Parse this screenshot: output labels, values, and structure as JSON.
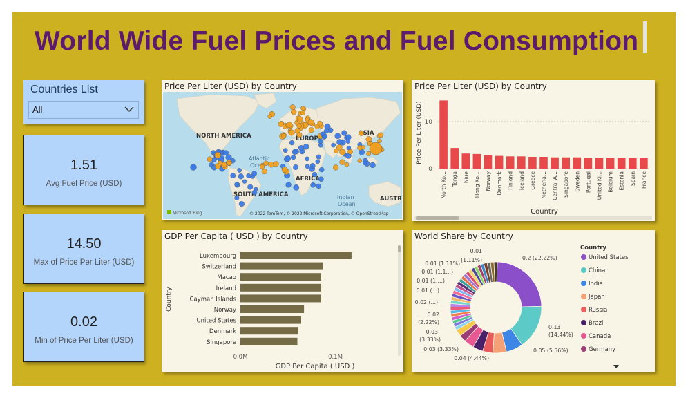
{
  "header": {
    "title": "World Wide Fuel Prices and Fuel Consumption"
  },
  "slicer": {
    "label": "Countries List",
    "selected": "All"
  },
  "cards": [
    {
      "value": "1.51",
      "label": "Avg Fuel Price (USD)"
    },
    {
      "value": "14.50",
      "label": "Max of Price Per Liter (USD)"
    },
    {
      "value": "0.02",
      "label": "Min of Price Per Liter (USD)"
    }
  ],
  "map": {
    "title": "Price Per Liter (USD) by Country",
    "labels": [
      "NORTH AMERICA",
      "EUROPE",
      "ASIA",
      "Atlantic",
      "Ocean",
      "AFRICA",
      "SOUTH AMERICA",
      "Indian",
      "Ocean",
      "AUSTRA"
    ],
    "logo": "Microsoft Bing",
    "attribution": "© 2022 TomTom, © 2022 Microsoft Corporation, © OpenStreetMap",
    "colors": {
      "water": "#b7dcec",
      "land": "#eee9d8",
      "blue_dot": "#3b7be8",
      "orange_dot": "#f0a020"
    }
  },
  "chart_data": [
    {
      "type": "bar",
      "title": "Price Per Liter (USD) by Country",
      "xlabel": "Country",
      "ylabel": "Price Per Liter (USD)",
      "categories": [
        "North Ko...",
        "Tonga",
        "Niue",
        "Hong Ko...",
        "Norway",
        "Denmark",
        "Finland",
        "Iceland",
        "Greece",
        "Netherla...",
        "Central A...",
        "Singapore",
        "Sweden",
        "Portugal",
        "United Ki...",
        "Belgium",
        "Estonia",
        "Spain",
        "France"
      ],
      "values": [
        14.5,
        4.4,
        3.2,
        3.1,
        2.8,
        2.7,
        2.6,
        2.6,
        2.5,
        2.5,
        2.4,
        2.4,
        2.4,
        2.3,
        2.3,
        2.3,
        2.2,
        2.2,
        2.2
      ],
      "ylim": [
        0,
        15
      ],
      "yticks": [
        "0",
        "10"
      ],
      "grid": true,
      "color": "#e8494b"
    },
    {
      "type": "bar",
      "orientation": "horizontal",
      "title": "GDP Per Capita ( USD ) by Country",
      "xlabel": "GDP Per Capita ( USD )",
      "ylabel": "Country",
      "categories": [
        "Luxembourg",
        "Switzerland",
        "Macao",
        "Ireland",
        "Cayman Islands",
        "Norway",
        "United States",
        "Denmark",
        "Singapore"
      ],
      "values": [
        117000,
        87000,
        85000,
        85000,
        85000,
        67000,
        64000,
        61000,
        60000
      ],
      "xlim": [
        0,
        160000
      ],
      "xticks": [
        "0.0M",
        "0.1M"
      ],
      "color": "#766b47"
    },
    {
      "type": "pie",
      "subtype": "donut",
      "title": "World Share by Country",
      "legend_title": "Country",
      "legend": [
        {
          "name": "United States",
          "color": "#8a4fc9"
        },
        {
          "name": "China",
          "color": "#5ccbc7"
        },
        {
          "name": "India",
          "color": "#3e86e5"
        },
        {
          "name": "Japan",
          "color": "#f4a177"
        },
        {
          "name": "Russia",
          "color": "#e95c5c"
        },
        {
          "name": "Brazil",
          "color": "#4a2069"
        },
        {
          "name": "Canada",
          "color": "#e85994"
        },
        {
          "name": "Germany",
          "color": "#9c3d76"
        }
      ],
      "slices": [
        {
          "name": "United States",
          "value": 22.22,
          "label": "0.2 (22.22%)",
          "color": "#8a4fc9"
        },
        {
          "name": "China",
          "value": 14.44,
          "label": "0.13 (14.44%)",
          "color": "#5ccbc7"
        },
        {
          "name": "India",
          "value": 5.56,
          "label": "0.05 (5.56%)",
          "color": "#3e86e5"
        },
        {
          "name": "Japan",
          "value": 4.44,
          "label": "0.04 (4.44%)",
          "color": "#f4a177"
        },
        {
          "name": "Russia",
          "value": 3.33,
          "label": "0.03 (3.33%)",
          "color": "#e95c5c"
        },
        {
          "name": "Brazil",
          "value": 3.33,
          "label": "0.03 (3.33%)",
          "color": "#4a2069"
        },
        {
          "name": "Canada",
          "value": 3.33,
          "label": "0.03 (3.33%)",
          "color": "#e85994"
        },
        {
          "name": "Germany",
          "value": 2.22,
          "label": "0.02 (2.22%)",
          "color": "#9c3d76"
        },
        {
          "name": "",
          "value": 2.22,
          "label": "0.02 (...)",
          "color": "#f6c94a"
        },
        {
          "name": "",
          "value": 1.11,
          "label": "0.01 (...)",
          "color": "#8ad3ef"
        },
        {
          "name": "",
          "value": 1.11,
          "label": "0.01 (1....)",
          "color": "#7c7ce0"
        },
        {
          "name": "",
          "value": 1.11,
          "label": "0.01 (1.1...)",
          "color": "#58c59b"
        },
        {
          "name": "",
          "value": 1.11,
          "label": "0.01 (1.11%)",
          "color": "#d05fd0"
        },
        {
          "name": "",
          "value": 1.11,
          "label": "0.01 (1.11%)",
          "color": "#f07f4e"
        },
        {
          "name": "",
          "value": 1.11,
          "label": "",
          "color": "#5ab7ea"
        },
        {
          "name": "",
          "value": 1.11,
          "label": "",
          "color": "#ea5a7a"
        },
        {
          "name": "",
          "value": 1.11,
          "label": "",
          "color": "#b684e6"
        },
        {
          "name": "",
          "value": 1.11,
          "label": "",
          "color": "#72d6c9"
        },
        {
          "name": "",
          "value": 1.11,
          "label": "",
          "color": "#f1b86a"
        },
        {
          "name": "",
          "value": 1.11,
          "label": "",
          "color": "#6c55c7"
        },
        {
          "name": "",
          "value": 1.11,
          "label": "",
          "color": "#f06a9a"
        },
        {
          "name": "",
          "value": 1.11,
          "label": "",
          "color": "#7fb2f0"
        },
        {
          "name": "",
          "value": 1.11,
          "label": "",
          "color": "#c44e8f"
        },
        {
          "name": "",
          "value": 1.11,
          "label": "",
          "color": "#5a2d7a"
        },
        {
          "name": "",
          "value": 1.11,
          "label": "",
          "color": "#3fa3a0"
        },
        {
          "name": "",
          "value": 1.11,
          "label": "",
          "color": "#e2744f"
        },
        {
          "name": "",
          "value": 1.11,
          "label": "",
          "color": "#9e79d8"
        },
        {
          "name": "",
          "value": 1.11,
          "label": "",
          "color": "#d94b6a"
        },
        {
          "name": "",
          "value": 1.11,
          "label": "",
          "color": "#f5d46a"
        },
        {
          "name": "",
          "value": 1.11,
          "label": "",
          "color": "#4b4b9a"
        },
        {
          "name": "",
          "value": 1.11,
          "label": "",
          "color": "#8cd36f"
        },
        {
          "name": "",
          "value": 1.11,
          "label": "",
          "color": "#a03f6a"
        },
        {
          "name": "",
          "value": 1.11,
          "label": "",
          "color": "#3d86c9"
        },
        {
          "name": "",
          "value": 1.11,
          "label": "",
          "color": "#7a3f2a"
        },
        {
          "name": "",
          "value": 1.11,
          "label": "",
          "color": "#666666"
        },
        {
          "name": "",
          "value": 1.11,
          "label": "",
          "color": "#8a6a2a"
        },
        {
          "name": "",
          "value": 1.11,
          "label": "",
          "color": "#4a3a2a"
        }
      ]
    }
  ]
}
